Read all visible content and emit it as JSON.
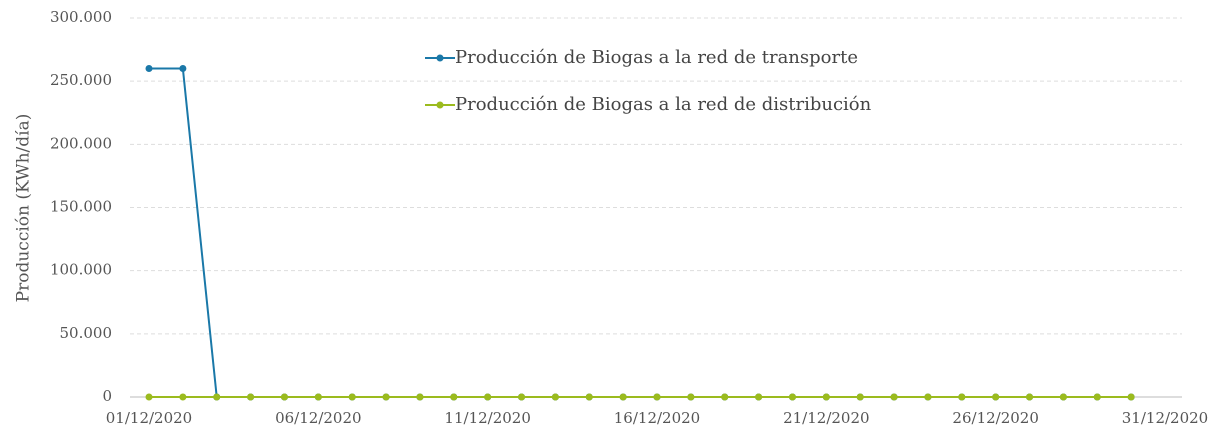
{
  "chart_data": {
    "type": "line",
    "y_label": "Producción (KWh/día)",
    "categories": [
      "01/12/2020",
      null,
      null,
      null,
      null,
      "06/12/2020",
      null,
      null,
      null,
      null,
      "11/12/2020",
      null,
      null,
      null,
      null,
      "16/12/2020",
      null,
      null,
      null,
      null,
      "21/12/2020",
      null,
      null,
      null,
      null,
      "26/12/2020",
      null,
      null,
      null,
      null,
      "31/12/2020"
    ],
    "series": [
      {
        "name": "Producción de Biogas a la red de transporte",
        "color": "#1a78a8",
        "values": [
          260000,
          260000,
          0,
          0,
          0,
          0,
          0,
          0,
          0,
          0,
          0,
          0,
          0,
          0,
          0,
          0,
          0,
          0,
          0,
          0,
          0,
          0,
          0,
          0,
          0,
          0,
          0,
          0,
          0,
          0,
          null
        ]
      },
      {
        "name": "Producción de Biogas a la red de distribución",
        "color": "#9bbb1e",
        "values": [
          0,
          0,
          0,
          0,
          0,
          0,
          0,
          0,
          0,
          0,
          0,
          0,
          0,
          0,
          0,
          0,
          0,
          0,
          0,
          0,
          0,
          0,
          0,
          0,
          0,
          0,
          0,
          0,
          0,
          0,
          null
        ]
      }
    ],
    "ylim": [
      0,
      300000
    ],
    "yticks": [
      0,
      {
        "value": 50000,
        "label": "50.000"
      },
      {
        "value": 100000,
        "label": "100.000"
      },
      {
        "value": 150000,
        "label": "150.000"
      },
      {
        "value": 200000,
        "label": "200.000"
      },
      {
        "value": 250000,
        "label": "250.000"
      },
      {
        "value": 300000,
        "label": "300.000"
      }
    ],
    "grid": true
  }
}
